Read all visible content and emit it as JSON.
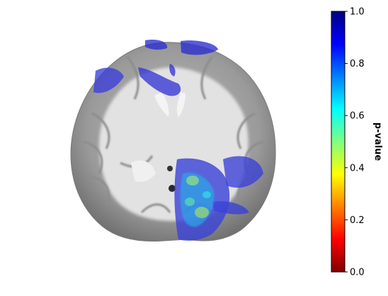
{
  "figure": {
    "description_free": true,
    "overlay_colormap": "jet",
    "background": "#ffffff"
  },
  "colorbar": {
    "label": "p-value",
    "min": 0.0,
    "max": 1.0,
    "ticks": [
      "0.0",
      "0.2",
      "0.4",
      "0.6",
      "0.8",
      "1.0"
    ],
    "tick_values": [
      0.0,
      0.2,
      0.4,
      0.6,
      0.8,
      1.0
    ],
    "colors": [
      "#800000",
      "#ff0000",
      "#ff8000",
      "#ffff00",
      "#80ff80",
      "#00ffff",
      "#0080ff",
      "#0000ff",
      "#000080"
    ]
  }
}
